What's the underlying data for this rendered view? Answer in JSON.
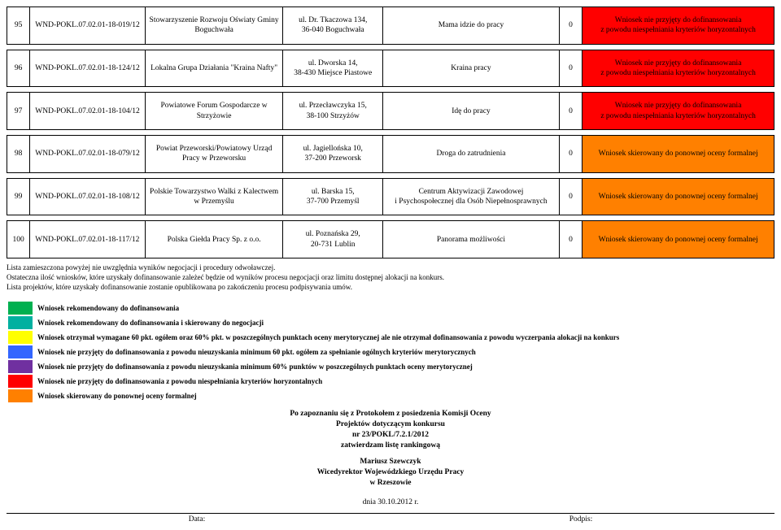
{
  "rows": [
    {
      "n": "95",
      "id": "WND-POKL.07.02.01-18-019/12",
      "org": "Stowarzyszenie Rozwoju Oświaty Gminy Boguchwała",
      "addr": "ul. Dr. Tkaczowa 134,\n36-040 Boguchwała",
      "title": "Mama idzie do pracy",
      "score": "0",
      "status": "Wniosek nie przyjęty do dofinansowania\nz powodu niespełniania kryteriów horyzontalnych",
      "statusClass": "status-red"
    },
    {
      "n": "96",
      "id": "WND-POKL.07.02.01-18-124/12",
      "org": "Lokalna Grupa Działania \"Kraina Nafty\"",
      "addr": "ul. Dworska 14,\n38-430 Miejsce Piastowe",
      "title": "Kraina pracy",
      "score": "0",
      "status": "Wniosek nie przyjęty do dofinansowania\nz powodu niespełniania kryteriów horyzontalnych",
      "statusClass": "status-red"
    },
    {
      "n": "97",
      "id": "WND-POKL.07.02.01-18-104/12",
      "org": "Powiatowe Forum Gospodarcze w Strzyżowie",
      "addr": "ul. Przecławczyka 15,\n38-100 Strzyżów",
      "title": "Idę do pracy",
      "score": "0",
      "status": "Wniosek nie przyjęty do dofinansowania\nz powodu niespełniania kryteriów horyzontalnych",
      "statusClass": "status-red"
    },
    {
      "n": "98",
      "id": "WND-POKL.07.02.01-18-079/12",
      "org": "Powiat Przeworski/Powiatowy Urząd Pracy w Przeworsku",
      "addr": "ul. Jagiellońska 10,\n37-200 Przeworsk",
      "title": "Droga do zatrudnienia",
      "score": "0",
      "status": "Wniosek skierowany do ponownej oceny formalnej",
      "statusClass": "status-orange"
    },
    {
      "n": "99",
      "id": "WND-POKL.07.02.01-18-108/12",
      "org": "Polskie Towarzystwo Walki z Kalectwem w Przemyślu",
      "addr": "ul. Barska 15,\n37-700 Przemyśl",
      "title": "Centrum Aktywizacji Zawodowej\ni Psychospołecznej dla Osób Niepełnosprawnych",
      "score": "0",
      "status": "Wniosek skierowany do ponownej oceny formalnej",
      "statusClass": "status-orange"
    },
    {
      "n": "100",
      "id": "WND-POKL.07.02.01-18-117/12",
      "org": "Polska Giełda Pracy Sp. z o.o.",
      "addr": "ul. Poznańska 29,\n20-731 Lublin",
      "title": "Panorama możliwości",
      "score": "0",
      "status": "Wniosek skierowany do ponownej oceny formalnej",
      "statusClass": "status-orange"
    }
  ],
  "notes": [
    "Lista zamieszczona powyżej nie uwzględnia wyników negocjacji i procedury odwoławczej.",
    "Ostateczna ilość wniosków, które uzyskały dofinansowanie zależeć będzie od wyników procesu negocjacji oraz limitu dostępnej alokacji na konkurs.",
    "Lista projektów, które uzyskały dofinansowanie zostanie opublikowana po zakończeniu procesu podpisywania umów."
  ],
  "legend": [
    {
      "swatch": "sw-green",
      "text": "Wniosek rekomendowany do dofinansowania"
    },
    {
      "swatch": "sw-teal",
      "text": "Wniosek rekomendowany do dofinansowania i skierowany do negocjacji"
    },
    {
      "swatch": "sw-yellow",
      "text": "Wniosek otrzymał wymagane 60 pkt. ogółem oraz 60% pkt. w poszczególnych punktach oceny merytorycznej ale nie otrzymał dofinansowania z powodu wyczerpania alokacji na konkurs"
    },
    {
      "swatch": "sw-blue",
      "text": "Wniosek nie przyjęty do dofinansowania z powodu nieuzyskania minimum 60 pkt. ogółem za spełnianie ogólnych kryteriów merytorycznych"
    },
    {
      "swatch": "sw-purple",
      "text": "Wniosek nie przyjęty do dofinansowania z powodu nieuzyskania minimum 60% punktów w poszczególnych punktach oceny merytorycznej"
    },
    {
      "swatch": "sw-red",
      "text": "Wniosek nie przyjęty do dofinansowania z powodu niespełniania kryteriów horyzontalnych"
    },
    {
      "swatch": "sw-orange",
      "text": "Wniosek skierowany do ponownej oceny formalnej"
    }
  ],
  "footer": {
    "line1": "Po zapoznaniu się z Protokołem z posiedzenia Komisji Oceny",
    "line2": "Projektów dotyczącym konkursu",
    "line3": "nr 23/POKL/7.2.1/2012",
    "line4": "zatwierdzam listę rankingową",
    "name": "Mariusz Szewczyk",
    "role": "Wicedyrektor Wojewódzkiego Urzędu Pracy",
    "place": "w Rzeszowie"
  },
  "date": "dnia 30.10.2012 r.",
  "sig": {
    "left": "Data:",
    "right": "Podpis:"
  }
}
